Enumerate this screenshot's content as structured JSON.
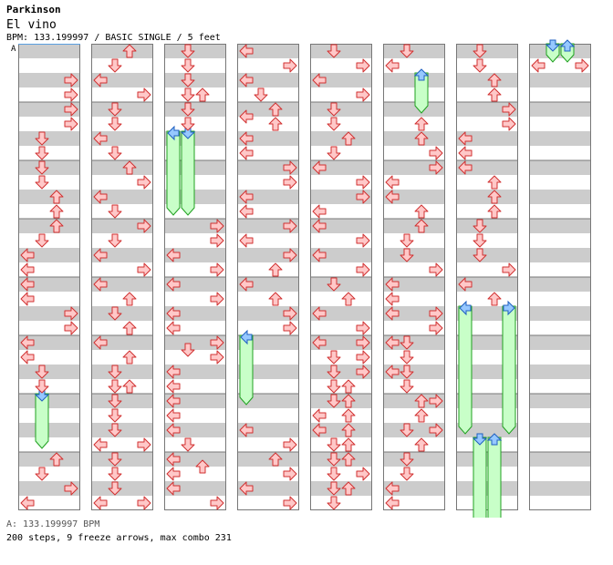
{
  "header": {
    "artist": "Parkinson",
    "title": "El vino",
    "meta": "BPM: 133.199997 / BASIC SINGLE / 5 feet"
  },
  "chart": {
    "marker_label": "A",
    "colors": {
      "band": "#cccccc",
      "background": "#ffffff",
      "border": "#777777",
      "arrow_fill": "#ffc8c8",
      "arrow_stroke": "#d03030",
      "freeze_head_fill": "#96c8ff",
      "freeze_head_stroke": "#2060c0",
      "freeze_body_fill": "#c8ffc8",
      "freeze_body_stroke": "#20a020"
    },
    "columns": [
      {
        "arrows": [
          [
            88,
            "R"
          ],
          [
            104,
            "R"
          ],
          [
            120,
            "R"
          ],
          [
            136,
            "R"
          ],
          [
            152,
            "D"
          ],
          [
            168,
            "D"
          ],
          [
            184,
            "D"
          ],
          [
            200,
            "D"
          ],
          [
            216,
            "U"
          ],
          [
            232,
            "U"
          ],
          [
            248,
            "U"
          ],
          [
            264,
            "D"
          ],
          [
            280,
            "L"
          ],
          [
            296,
            "L"
          ],
          [
            312,
            "L"
          ],
          [
            328,
            "L"
          ],
          [
            344,
            "R"
          ],
          [
            360,
            "R"
          ],
          [
            376,
            "L"
          ],
          [
            392,
            "L"
          ],
          [
            408,
            "D"
          ],
          [
            424,
            "D"
          ],
          [
            504,
            "U"
          ],
          [
            520,
            "D"
          ],
          [
            536,
            "R"
          ],
          [
            552,
            "L"
          ]
        ],
        "freezes": [
          [
            432,
            492,
            "D"
          ]
        ]
      },
      {
        "arrows": [
          [
            56,
            "U"
          ],
          [
            72,
            "D"
          ],
          [
            88,
            "L"
          ],
          [
            104,
            "R"
          ],
          [
            120,
            "D"
          ],
          [
            136,
            "D"
          ],
          [
            152,
            "L"
          ],
          [
            168,
            "D"
          ],
          [
            184,
            "U"
          ],
          [
            200,
            "R"
          ],
          [
            216,
            "L"
          ],
          [
            232,
            "D"
          ],
          [
            248,
            "R"
          ],
          [
            264,
            "D"
          ],
          [
            280,
            "L"
          ],
          [
            296,
            "R"
          ],
          [
            312,
            "L"
          ],
          [
            328,
            "U"
          ],
          [
            344,
            "D"
          ],
          [
            360,
            "U"
          ],
          [
            376,
            "L"
          ],
          [
            392,
            "U"
          ],
          [
            408,
            "D"
          ],
          [
            424,
            "D"
          ],
          [
            424,
            "U"
          ],
          [
            440,
            "D"
          ],
          [
            456,
            "D"
          ],
          [
            472,
            "D"
          ],
          [
            488,
            "L"
          ],
          [
            488,
            "R"
          ],
          [
            504,
            "D"
          ],
          [
            520,
            "D"
          ],
          [
            536,
            "D"
          ],
          [
            552,
            "L"
          ],
          [
            552,
            "R"
          ]
        ],
        "freezes": []
      },
      {
        "arrows": [
          [
            56,
            "D"
          ],
          [
            72,
            "D"
          ],
          [
            88,
            "D"
          ],
          [
            104,
            "D"
          ],
          [
            104,
            "U"
          ],
          [
            120,
            "D"
          ],
          [
            136,
            "D"
          ],
          [
            248,
            "R"
          ],
          [
            264,
            "R"
          ],
          [
            280,
            "L"
          ],
          [
            296,
            "R"
          ],
          [
            312,
            "L"
          ],
          [
            328,
            "R"
          ],
          [
            344,
            "L"
          ],
          [
            360,
            "L"
          ],
          [
            376,
            "R"
          ],
          [
            384,
            "D"
          ],
          [
            392,
            "R"
          ],
          [
            408,
            "L"
          ],
          [
            424,
            "L"
          ],
          [
            440,
            "L"
          ],
          [
            456,
            "L"
          ],
          [
            472,
            "L"
          ],
          [
            488,
            "D"
          ],
          [
            504,
            "L"
          ],
          [
            512,
            "U"
          ],
          [
            520,
            "L"
          ],
          [
            536,
            "L"
          ],
          [
            552,
            "R"
          ]
        ],
        "freezes": [
          [
            144,
            236,
            "L"
          ],
          [
            144,
            236,
            "D"
          ]
        ]
      },
      {
        "arrows": [
          [
            56,
            "L"
          ],
          [
            72,
            "R"
          ],
          [
            88,
            "L"
          ],
          [
            104,
            "D"
          ],
          [
            120,
            "U"
          ],
          [
            128,
            "L"
          ],
          [
            136,
            "U"
          ],
          [
            152,
            "L"
          ],
          [
            168,
            "L"
          ],
          [
            184,
            "R"
          ],
          [
            200,
            "R"
          ],
          [
            216,
            "L"
          ],
          [
            232,
            "L"
          ],
          [
            248,
            "R"
          ],
          [
            264,
            "L"
          ],
          [
            280,
            "R"
          ],
          [
            296,
            "U"
          ],
          [
            312,
            "L"
          ],
          [
            328,
            "U"
          ],
          [
            344,
            "R"
          ],
          [
            360,
            "R"
          ],
          [
            472,
            "L"
          ],
          [
            488,
            "R"
          ],
          [
            504,
            "U"
          ],
          [
            520,
            "R"
          ],
          [
            536,
            "L"
          ],
          [
            552,
            "R"
          ]
        ],
        "freezes": [
          [
            368,
            444,
            "L"
          ]
        ]
      },
      {
        "arrows": [
          [
            56,
            "D"
          ],
          [
            72,
            "R"
          ],
          [
            88,
            "L"
          ],
          [
            104,
            "R"
          ],
          [
            120,
            "D"
          ],
          [
            136,
            "D"
          ],
          [
            152,
            "U"
          ],
          [
            168,
            "D"
          ],
          [
            184,
            "L"
          ],
          [
            200,
            "R"
          ],
          [
            216,
            "R"
          ],
          [
            232,
            "L"
          ],
          [
            248,
            "L"
          ],
          [
            264,
            "R"
          ],
          [
            280,
            "L"
          ],
          [
            296,
            "R"
          ],
          [
            312,
            "D"
          ],
          [
            328,
            "U"
          ],
          [
            344,
            "L"
          ],
          [
            360,
            "R"
          ],
          [
            376,
            "L"
          ],
          [
            376,
            "R"
          ],
          [
            392,
            "D"
          ],
          [
            392,
            "R"
          ],
          [
            408,
            "D"
          ],
          [
            408,
            "R"
          ],
          [
            424,
            "D"
          ],
          [
            424,
            "U"
          ],
          [
            440,
            "D"
          ],
          [
            440,
            "U"
          ],
          [
            456,
            "L"
          ],
          [
            456,
            "U"
          ],
          [
            472,
            "L"
          ],
          [
            472,
            "U"
          ],
          [
            488,
            "D"
          ],
          [
            488,
            "U"
          ],
          [
            504,
            "D"
          ],
          [
            504,
            "U"
          ],
          [
            520,
            "D"
          ],
          [
            520,
            "R"
          ],
          [
            536,
            "D"
          ],
          [
            536,
            "U"
          ],
          [
            552,
            "D"
          ]
        ],
        "freezes": []
      },
      {
        "arrows": [
          [
            56,
            "D"
          ],
          [
            72,
            "L"
          ],
          [
            136,
            "U"
          ],
          [
            152,
            "U"
          ],
          [
            168,
            "R"
          ],
          [
            184,
            "R"
          ],
          [
            200,
            "L"
          ],
          [
            216,
            "L"
          ],
          [
            232,
            "U"
          ],
          [
            248,
            "U"
          ],
          [
            264,
            "D"
          ],
          [
            280,
            "D"
          ],
          [
            296,
            "R"
          ],
          [
            312,
            "L"
          ],
          [
            328,
            "L"
          ],
          [
            344,
            "L"
          ],
          [
            344,
            "R"
          ],
          [
            360,
            "R"
          ],
          [
            376,
            "L"
          ],
          [
            376,
            "D"
          ],
          [
            392,
            "D"
          ],
          [
            408,
            "L"
          ],
          [
            408,
            "D"
          ],
          [
            424,
            "D"
          ],
          [
            440,
            "U"
          ],
          [
            440,
            "R"
          ],
          [
            456,
            "U"
          ],
          [
            472,
            "D"
          ],
          [
            472,
            "R"
          ],
          [
            488,
            "U"
          ],
          [
            504,
            "D"
          ],
          [
            520,
            "D"
          ],
          [
            536,
            "L"
          ],
          [
            552,
            "L"
          ]
        ],
        "freezes": [
          [
            80,
            124,
            "U"
          ]
        ]
      },
      {
        "arrows": [
          [
            56,
            "D"
          ],
          [
            72,
            "D"
          ],
          [
            88,
            "U"
          ],
          [
            104,
            "U"
          ],
          [
            120,
            "R"
          ],
          [
            136,
            "R"
          ],
          [
            152,
            "L"
          ],
          [
            168,
            "L"
          ],
          [
            184,
            "L"
          ],
          [
            200,
            "U"
          ],
          [
            216,
            "U"
          ],
          [
            232,
            "U"
          ],
          [
            248,
            "D"
          ],
          [
            264,
            "D"
          ],
          [
            280,
            "D"
          ],
          [
            296,
            "R"
          ],
          [
            312,
            "L"
          ],
          [
            328,
            "U"
          ]
        ],
        "freezes": [
          [
            336,
            476,
            "L"
          ],
          [
            336,
            476,
            "R"
          ],
          [
            480,
            620,
            "D"
          ],
          [
            480,
            620,
            "U"
          ]
        ]
      },
      {
        "arrows": [
          [
            72,
            "L"
          ],
          [
            72,
            "R"
          ]
        ],
        "freezes": [
          [
            48,
            68,
            "D"
          ],
          [
            48,
            68,
            "U"
          ]
        ]
      }
    ]
  },
  "footer": {
    "bpm_line": "A: 133.199997 BPM",
    "stats": "200 steps, 9 freeze arrows, max combo 231"
  }
}
